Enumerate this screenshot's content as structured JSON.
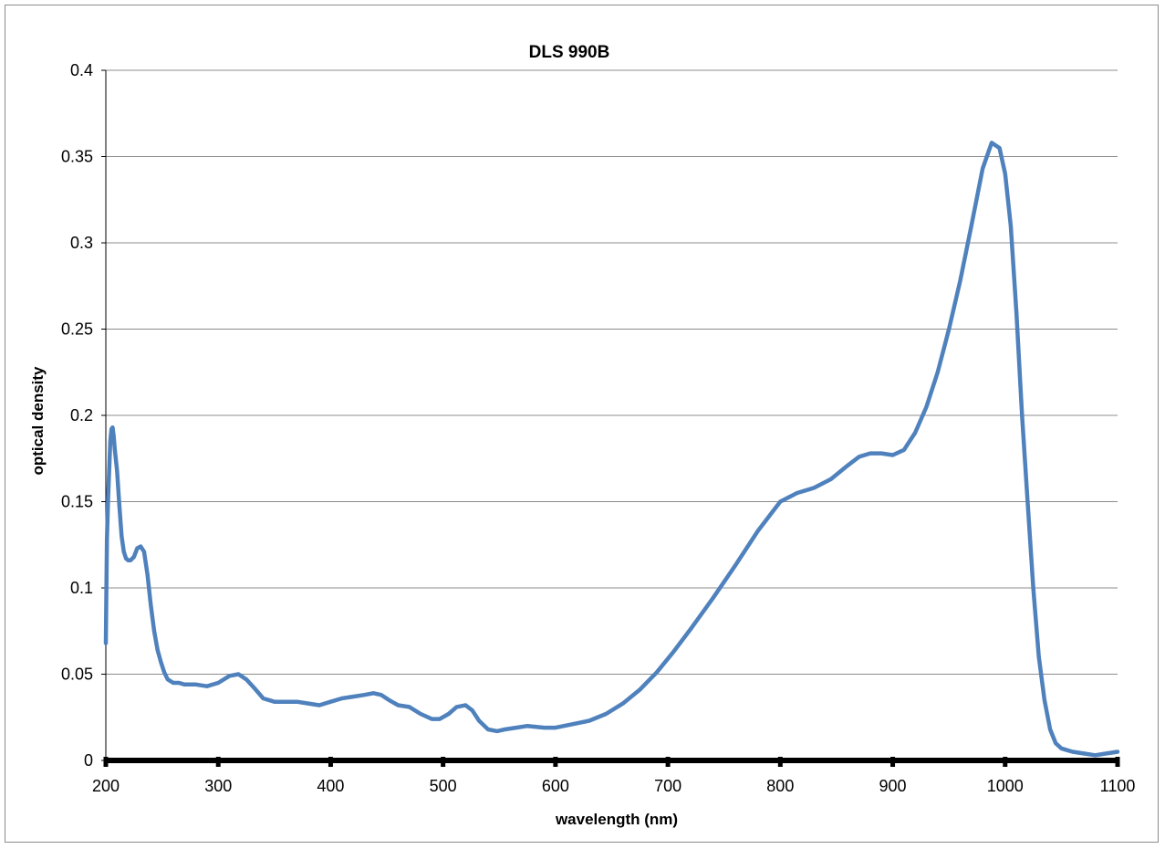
{
  "chart_data": {
    "type": "line",
    "title": "DLS 990B",
    "xlabel": "wavelength (nm)",
    "ylabel": "optical density",
    "xlim": [
      200,
      1100
    ],
    "ylim": [
      0,
      0.4
    ],
    "xticks": [
      200,
      300,
      400,
      500,
      600,
      700,
      800,
      900,
      1000,
      1100
    ],
    "yticks": [
      0,
      0.05,
      0.1,
      0.15,
      0.2,
      0.25,
      0.3,
      0.35,
      0.4
    ],
    "ytick_labels": [
      "0",
      "0.05",
      "0.1",
      "0.15",
      "0.2",
      "0.25",
      "0.3",
      "0.35",
      "0.4"
    ],
    "grid": "horizontal",
    "legend": "none",
    "series_color": "#4f81bd",
    "series": [
      {
        "x": [
          200,
          201,
          202,
          204,
          205,
          206,
          207,
          208,
          210,
          212,
          214,
          216,
          218,
          220,
          222,
          225,
          228,
          231,
          234,
          237,
          240,
          243,
          246,
          249,
          252,
          255,
          260,
          265,
          270,
          280,
          290,
          300,
          310,
          318,
          325,
          332,
          340,
          350,
          360,
          370,
          380,
          390,
          400,
          410,
          420,
          430,
          438,
          445,
          452,
          460,
          470,
          480,
          490,
          497,
          505,
          512,
          520,
          526,
          532,
          540,
          548,
          555,
          565,
          575,
          590,
          600,
          615,
          630,
          645,
          660,
          675,
          690,
          705,
          720,
          740,
          760,
          780,
          800,
          815,
          830,
          845,
          860,
          870,
          880,
          890,
          900,
          910,
          920,
          930,
          940,
          950,
          960,
          970,
          980,
          988,
          995,
          1000,
          1005,
          1010,
          1015,
          1020,
          1025,
          1030,
          1035,
          1040,
          1045,
          1050,
          1055,
          1060,
          1070,
          1080,
          1090,
          1100
        ],
        "y": [
          0.068,
          0.128,
          0.152,
          0.185,
          0.192,
          0.193,
          0.188,
          0.18,
          0.168,
          0.148,
          0.13,
          0.121,
          0.117,
          0.116,
          0.116,
          0.118,
          0.123,
          0.124,
          0.121,
          0.108,
          0.09,
          0.075,
          0.064,
          0.057,
          0.051,
          0.047,
          0.045,
          0.045,
          0.044,
          0.044,
          0.043,
          0.045,
          0.049,
          0.05,
          0.047,
          0.042,
          0.036,
          0.034,
          0.034,
          0.034,
          0.033,
          0.032,
          0.034,
          0.036,
          0.037,
          0.038,
          0.039,
          0.038,
          0.035,
          0.032,
          0.031,
          0.027,
          0.024,
          0.024,
          0.027,
          0.031,
          0.032,
          0.029,
          0.023,
          0.018,
          0.017,
          0.018,
          0.019,
          0.02,
          0.019,
          0.019,
          0.021,
          0.023,
          0.027,
          0.033,
          0.041,
          0.051,
          0.063,
          0.076,
          0.094,
          0.113,
          0.133,
          0.15,
          0.155,
          0.158,
          0.163,
          0.171,
          0.176,
          0.178,
          0.178,
          0.177,
          0.18,
          0.19,
          0.205,
          0.225,
          0.25,
          0.278,
          0.31,
          0.343,
          0.358,
          0.355,
          0.34,
          0.31,
          0.26,
          0.2,
          0.15,
          0.1,
          0.06,
          0.035,
          0.018,
          0.01,
          0.007,
          0.006,
          0.005,
          0.004,
          0.003,
          0.004,
          0.005
        ]
      }
    ]
  }
}
